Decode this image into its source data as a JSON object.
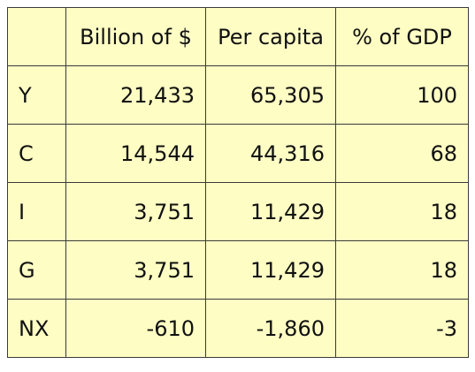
{
  "table": {
    "header": [
      "",
      "Billion of $",
      "Per capita",
      "% of GDP"
    ],
    "rows": [
      {
        "label": "Y",
        "billions": "21,433",
        "per_capita": "65,305",
        "pct_gdp": "100"
      },
      {
        "label": "C",
        "billions": "14,544",
        "per_capita": "44,316",
        "pct_gdp": "68"
      },
      {
        "label": "I",
        "billions": "3,751",
        "per_capita": "11,429",
        "pct_gdp": "18"
      },
      {
        "label": "G",
        "billions": "3,751",
        "per_capita": "11,429",
        "pct_gdp": "18"
      },
      {
        "label": "NX",
        "billions": "-610",
        "per_capita": "-1,860",
        "pct_gdp": "-3"
      }
    ]
  },
  "colors": {
    "cell_background": "#fdfdc4",
    "border": "#3a3a3a",
    "text": "#111111"
  }
}
